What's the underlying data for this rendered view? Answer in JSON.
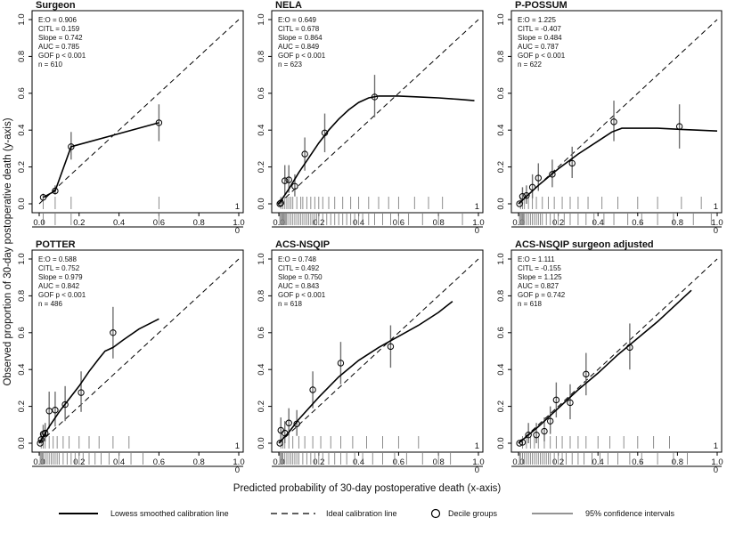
{
  "figure": {
    "xlabel": "Predicted probability of 30-day postoperative death (x-axis)",
    "ylabel": "Observed proportion of 30-day postoperative death (y-axis)",
    "legend": [
      {
        "id": "lowess",
        "label": "Lowess smoothed calibration line"
      },
      {
        "id": "ideal",
        "label": "Ideal calibration line"
      },
      {
        "id": "decile",
        "label": "Decile groups"
      },
      {
        "id": "ci",
        "label": "95% confidence intervals"
      }
    ],
    "rug_labels": [
      "1",
      "0"
    ],
    "colors": {
      "line": "#000000",
      "ci": "#707070",
      "rug": "#808080",
      "background": "#ffffff"
    }
  },
  "chart_data": [
    {
      "type": "scatter",
      "title": "Surgeon",
      "stats": [
        "E:O = 0.906",
        "CITL = 0.159",
        "Slope = 0.742",
        "AUC = 0.785",
        "GOF p < 0.001",
        "n = 610"
      ],
      "xlim": [
        0,
        1
      ],
      "ylim": [
        0,
        1
      ],
      "x_ticks": [
        "0.0",
        "0.2",
        "0.4",
        "0.6",
        "0.8",
        "1.0"
      ],
      "y_ticks": [
        "0.0",
        "0.2",
        "0.4",
        "0.6",
        "0.8",
        "1.0"
      ],
      "points": [
        {
          "x": 0.02,
          "y": 0.035,
          "lo": 0.02,
          "hi": 0.055
        },
        {
          "x": 0.08,
          "y": 0.07,
          "lo": 0.05,
          "hi": 0.1
        },
        {
          "x": 0.16,
          "y": 0.31,
          "lo": 0.24,
          "hi": 0.39
        },
        {
          "x": 0.6,
          "y": 0.44,
          "lo": 0.34,
          "hi": 0.54
        }
      ],
      "lowess": [
        [
          0.02,
          0.035
        ],
        [
          0.08,
          0.07
        ],
        [
          0.16,
          0.31
        ],
        [
          0.6,
          0.44
        ]
      ],
      "rug_events": [
        0.02,
        0.08,
        0.16,
        0.6
      ],
      "rug_nonevents": [
        0.02,
        0.08,
        0.16,
        0.6
      ]
    },
    {
      "type": "scatter",
      "title": "NELA",
      "stats": [
        "E:O = 0.649",
        "CITL = 0.678",
        "Slope = 0.864",
        "AUC = 0.849",
        "GOF p < 0.001",
        "n = 623"
      ],
      "xlim": [
        0,
        1
      ],
      "ylim": [
        0,
        1
      ],
      "x_ticks": [
        "0.0",
        "0.2",
        "0.4",
        "0.6",
        "0.8",
        "1.0"
      ],
      "y_ticks": [
        "0.0",
        "0.2",
        "0.4",
        "0.6",
        "0.8",
        "1.0"
      ],
      "points": [
        {
          "x": 0.005,
          "y": 0.0,
          "lo": 0.0,
          "hi": 0.01
        },
        {
          "x": 0.01,
          "y": 0.005,
          "lo": 0.0,
          "hi": 0.03
        },
        {
          "x": 0.03,
          "y": 0.125,
          "lo": 0.05,
          "hi": 0.21
        },
        {
          "x": 0.05,
          "y": 0.13,
          "lo": 0.06,
          "hi": 0.21
        },
        {
          "x": 0.08,
          "y": 0.095,
          "lo": 0.04,
          "hi": 0.16
        },
        {
          "x": 0.13,
          "y": 0.27,
          "lo": 0.18,
          "hi": 0.36
        },
        {
          "x": 0.23,
          "y": 0.385,
          "lo": 0.28,
          "hi": 0.49
        },
        {
          "x": 0.48,
          "y": 0.58,
          "lo": 0.47,
          "hi": 0.7
        }
      ],
      "lowess": [
        [
          0.0,
          0.0
        ],
        [
          0.05,
          0.08
        ],
        [
          0.1,
          0.17
        ],
        [
          0.15,
          0.25
        ],
        [
          0.2,
          0.33
        ],
        [
          0.25,
          0.4
        ],
        [
          0.3,
          0.46
        ],
        [
          0.35,
          0.51
        ],
        [
          0.4,
          0.55
        ],
        [
          0.45,
          0.575
        ],
        [
          0.5,
          0.585
        ],
        [
          0.6,
          0.585
        ],
        [
          0.7,
          0.58
        ],
        [
          0.8,
          0.575
        ],
        [
          0.9,
          0.567
        ],
        [
          0.98,
          0.56
        ]
      ],
      "rug_events": [
        0.01,
        0.02,
        0.03,
        0.04,
        0.05,
        0.06,
        0.07,
        0.09,
        0.11,
        0.12,
        0.14,
        0.16,
        0.18,
        0.2,
        0.22,
        0.25,
        0.28,
        0.32,
        0.36,
        0.4,
        0.45,
        0.5,
        0.55,
        0.6,
        0.68,
        0.75,
        0.82
      ],
      "rug_nonevents": [
        0.005,
        0.01,
        0.015,
        0.02,
        0.025,
        0.03,
        0.035,
        0.04,
        0.05,
        0.06,
        0.07,
        0.08,
        0.09,
        0.1,
        0.11,
        0.12,
        0.13,
        0.14,
        0.15,
        0.16,
        0.17,
        0.18,
        0.19,
        0.2,
        0.22,
        0.24,
        0.26,
        0.28,
        0.3,
        0.32,
        0.34,
        0.36,
        0.38,
        0.4,
        0.42,
        0.45,
        0.48,
        0.52,
        0.56,
        0.6,
        0.65,
        0.72,
        0.8,
        0.92
      ]
    },
    {
      "type": "scatter",
      "title": "P-POSSUM",
      "stats": [
        "E:O = 1.225",
        "CITL = -0.407",
        "Slope = 0.484",
        "AUC = 0.787",
        "GOF p < 0.001",
        "n = 622"
      ],
      "xlim": [
        0,
        1
      ],
      "ylim": [
        0,
        1
      ],
      "x_ticks": [
        "0.0",
        "0.2",
        "0.4",
        "0.6",
        "0.8",
        "1.0"
      ],
      "y_ticks": [
        "0.0",
        "0.2",
        "0.4",
        "0.6",
        "0.8",
        "1.0"
      ],
      "points": [
        {
          "x": 0.005,
          "y": 0.0,
          "lo": 0.0,
          "hi": 0.01
        },
        {
          "x": 0.02,
          "y": 0.04,
          "lo": 0.0,
          "hi": 0.09
        },
        {
          "x": 0.04,
          "y": 0.045,
          "lo": 0.0,
          "hi": 0.1
        },
        {
          "x": 0.07,
          "y": 0.09,
          "lo": 0.03,
          "hi": 0.16
        },
        {
          "x": 0.1,
          "y": 0.14,
          "lo": 0.07,
          "hi": 0.22
        },
        {
          "x": 0.17,
          "y": 0.16,
          "lo": 0.09,
          "hi": 0.24
        },
        {
          "x": 0.27,
          "y": 0.22,
          "lo": 0.14,
          "hi": 0.31
        },
        {
          "x": 0.48,
          "y": 0.445,
          "lo": 0.34,
          "hi": 0.56
        },
        {
          "x": 0.81,
          "y": 0.42,
          "lo": 0.3,
          "hi": 0.54
        }
      ],
      "lowess": [
        [
          0.0,
          0.0
        ],
        [
          0.1,
          0.1
        ],
        [
          0.2,
          0.19
        ],
        [
          0.3,
          0.27
        ],
        [
          0.4,
          0.34
        ],
        [
          0.47,
          0.39
        ],
        [
          0.52,
          0.41
        ],
        [
          0.6,
          0.41
        ],
        [
          0.7,
          0.41
        ],
        [
          0.8,
          0.405
        ],
        [
          0.9,
          0.4
        ],
        [
          1.0,
          0.395
        ]
      ],
      "rug_events": [
        0.01,
        0.02,
        0.03,
        0.05,
        0.07,
        0.09,
        0.12,
        0.15,
        0.18,
        0.22,
        0.26,
        0.3,
        0.35,
        0.42,
        0.5,
        0.6,
        0.7,
        0.82,
        0.92
      ],
      "rug_nonevents": [
        0.005,
        0.01,
        0.015,
        0.02,
        0.025,
        0.03,
        0.04,
        0.05,
        0.06,
        0.07,
        0.08,
        0.09,
        0.1,
        0.11,
        0.12,
        0.14,
        0.16,
        0.18,
        0.2,
        0.23,
        0.26,
        0.3,
        0.34,
        0.38,
        0.43,
        0.48,
        0.55,
        0.62,
        0.7,
        0.78,
        0.88,
        0.97
      ]
    },
    {
      "type": "scatter",
      "title": "POTTER",
      "stats": [
        "E:O = 0.588",
        "CITL = 0.752",
        "Slope = 0.979",
        "AUC = 0.842",
        "GOF p < 0.001",
        "n = 486"
      ],
      "xlim": [
        0,
        1
      ],
      "ylim": [
        0,
        1
      ],
      "x_ticks": [
        "0.0",
        "0.2",
        "0.4",
        "0.6",
        "0.8",
        "1.0"
      ],
      "y_ticks": [
        "0.0",
        "0.2",
        "0.4",
        "0.6",
        "0.8",
        "1.0"
      ],
      "points": [
        {
          "x": 0.005,
          "y": 0.0,
          "lo": 0.0,
          "hi": 0.02
        },
        {
          "x": 0.01,
          "y": 0.02,
          "lo": 0.0,
          "hi": 0.06
        },
        {
          "x": 0.02,
          "y": 0.05,
          "lo": 0.01,
          "hi": 0.1
        },
        {
          "x": 0.03,
          "y": 0.055,
          "lo": 0.01,
          "hi": 0.11
        },
        {
          "x": 0.05,
          "y": 0.175,
          "lo": 0.08,
          "hi": 0.28
        },
        {
          "x": 0.08,
          "y": 0.18,
          "lo": 0.09,
          "hi": 0.28
        },
        {
          "x": 0.13,
          "y": 0.21,
          "lo": 0.12,
          "hi": 0.31
        },
        {
          "x": 0.21,
          "y": 0.275,
          "lo": 0.17,
          "hi": 0.39
        },
        {
          "x": 0.37,
          "y": 0.6,
          "lo": 0.46,
          "hi": 0.74
        }
      ],
      "lowess": [
        [
          0.0,
          0.0
        ],
        [
          0.05,
          0.09
        ],
        [
          0.1,
          0.17
        ],
        [
          0.15,
          0.24
        ],
        [
          0.2,
          0.31
        ],
        [
          0.25,
          0.39
        ],
        [
          0.3,
          0.46
        ],
        [
          0.33,
          0.5
        ],
        [
          0.37,
          0.52
        ],
        [
          0.42,
          0.56
        ],
        [
          0.5,
          0.62
        ],
        [
          0.6,
          0.675
        ]
      ],
      "rug_events": [
        0.01,
        0.02,
        0.03,
        0.05,
        0.07,
        0.09,
        0.12,
        0.15,
        0.2,
        0.25,
        0.3,
        0.37,
        0.45
      ],
      "rug_nonevents": [
        0.005,
        0.01,
        0.015,
        0.02,
        0.03,
        0.04,
        0.05,
        0.06,
        0.07,
        0.08,
        0.09,
        0.1,
        0.12,
        0.14,
        0.16,
        0.18,
        0.2,
        0.22,
        0.25,
        0.28,
        0.31,
        0.35,
        0.4,
        0.46,
        0.52
      ]
    },
    {
      "type": "scatter",
      "title": "ACS-NSQIP",
      "stats": [
        "E:O = 0.748",
        "CITL = 0.492",
        "Slope = 0.750",
        "AUC = 0.843",
        "GOF p < 0.001",
        "n = 618"
      ],
      "xlim": [
        0,
        1
      ],
      "ylim": [
        0,
        1
      ],
      "x_ticks": [
        "0.0",
        "0.2",
        "0.4",
        "0.6",
        "0.8",
        "1.0"
      ],
      "y_ticks": [
        "0.0",
        "0.2",
        "0.4",
        "0.6",
        "0.8",
        "1.0"
      ],
      "points": [
        {
          "x": 0.005,
          "y": 0.0,
          "lo": 0.0,
          "hi": 0.02
        },
        {
          "x": 0.01,
          "y": 0.07,
          "lo": 0.01,
          "hi": 0.14
        },
        {
          "x": 0.03,
          "y": 0.055,
          "lo": 0.0,
          "hi": 0.12
        },
        {
          "x": 0.05,
          "y": 0.11,
          "lo": 0.04,
          "hi": 0.19
        },
        {
          "x": 0.09,
          "y": 0.105,
          "lo": 0.04,
          "hi": 0.18
        },
        {
          "x": 0.17,
          "y": 0.29,
          "lo": 0.19,
          "hi": 0.39
        },
        {
          "x": 0.31,
          "y": 0.435,
          "lo": 0.32,
          "hi": 0.55
        },
        {
          "x": 0.56,
          "y": 0.525,
          "lo": 0.41,
          "hi": 0.64
        }
      ],
      "lowess": [
        [
          0.0,
          0.0
        ],
        [
          0.05,
          0.06
        ],
        [
          0.1,
          0.13
        ],
        [
          0.2,
          0.25
        ],
        [
          0.3,
          0.36
        ],
        [
          0.4,
          0.45
        ],
        [
          0.5,
          0.52
        ],
        [
          0.6,
          0.58
        ],
        [
          0.7,
          0.64
        ],
        [
          0.8,
          0.71
        ],
        [
          0.87,
          0.77
        ]
      ],
      "rug_events": [
        0.01,
        0.02,
        0.03,
        0.05,
        0.07,
        0.1,
        0.13,
        0.17,
        0.21,
        0.26,
        0.31,
        0.37,
        0.44,
        0.52,
        0.6,
        0.7
      ],
      "rug_nonevents": [
        0.005,
        0.01,
        0.015,
        0.02,
        0.03,
        0.04,
        0.05,
        0.06,
        0.07,
        0.08,
        0.09,
        0.1,
        0.12,
        0.14,
        0.16,
        0.18,
        0.2,
        0.22,
        0.25,
        0.28,
        0.31,
        0.34,
        0.38,
        0.42,
        0.47,
        0.52,
        0.58,
        0.64,
        0.72,
        0.8,
        0.86
      ]
    },
    {
      "type": "scatter",
      "title": "ACS-NSQIP surgeon adjusted",
      "stats": [
        "E:O = 1.111",
        "CITL = -0.155",
        "Slope = 1.125",
        "AUC = 0.827",
        "GOF p = 0.742",
        "n = 618"
      ],
      "xlim": [
        0,
        1
      ],
      "ylim": [
        0,
        1
      ],
      "x_ticks": [
        "0.0",
        "0.2",
        "0.4",
        "0.6",
        "0.8",
        "1.0"
      ],
      "y_ticks": [
        "0.0",
        "0.2",
        "0.4",
        "0.6",
        "0.8",
        "1.0"
      ],
      "points": [
        {
          "x": 0.005,
          "y": 0.0,
          "lo": 0.0,
          "hi": 0.01
        },
        {
          "x": 0.02,
          "y": 0.005,
          "lo": 0.0,
          "hi": 0.02
        },
        {
          "x": 0.05,
          "y": 0.045,
          "lo": 0.0,
          "hi": 0.11
        },
        {
          "x": 0.09,
          "y": 0.045,
          "lo": 0.0,
          "hi": 0.11
        },
        {
          "x": 0.13,
          "y": 0.065,
          "lo": 0.01,
          "hi": 0.14
        },
        {
          "x": 0.16,
          "y": 0.12,
          "lo": 0.05,
          "hi": 0.2
        },
        {
          "x": 0.19,
          "y": 0.235,
          "lo": 0.14,
          "hi": 0.33
        },
        {
          "x": 0.26,
          "y": 0.22,
          "lo": 0.13,
          "hi": 0.32
        },
        {
          "x": 0.34,
          "y": 0.375,
          "lo": 0.26,
          "hi": 0.49
        },
        {
          "x": 0.56,
          "y": 0.52,
          "lo": 0.4,
          "hi": 0.65
        }
      ],
      "lowess": [
        [
          0.0,
          0.0
        ],
        [
          0.1,
          0.09
        ],
        [
          0.2,
          0.19
        ],
        [
          0.3,
          0.29
        ],
        [
          0.4,
          0.38
        ],
        [
          0.5,
          0.48
        ],
        [
          0.6,
          0.57
        ],
        [
          0.7,
          0.66
        ],
        [
          0.8,
          0.76
        ],
        [
          0.87,
          0.83
        ]
      ],
      "rug_events": [
        0.02,
        0.04,
        0.06,
        0.08,
        0.1,
        0.13,
        0.16,
        0.19,
        0.22,
        0.26,
        0.3,
        0.34,
        0.4,
        0.46,
        0.53,
        0.6,
        0.68,
        0.76
      ],
      "rug_nonevents": [
        0.005,
        0.01,
        0.02,
        0.03,
        0.04,
        0.05,
        0.06,
        0.07,
        0.08,
        0.09,
        0.1,
        0.11,
        0.12,
        0.13,
        0.14,
        0.15,
        0.16,
        0.18,
        0.2,
        0.22,
        0.24,
        0.27,
        0.3,
        0.33,
        0.37,
        0.41,
        0.45,
        0.5,
        0.56,
        0.62,
        0.7,
        0.78,
        0.85
      ]
    }
  ]
}
